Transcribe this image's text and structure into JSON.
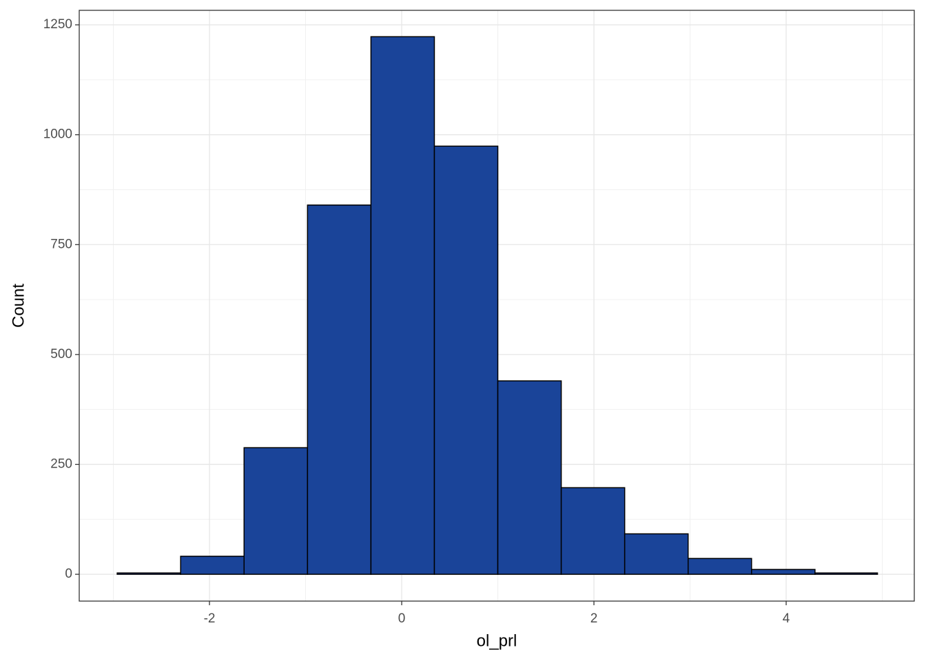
{
  "chart_data": {
    "type": "histogram",
    "x_label": "ol_prl",
    "y_label": "Count",
    "bins": [
      -2.96,
      -2.3,
      -1.64,
      -0.98,
      -0.32,
      0.34,
      1.0,
      1.66,
      2.32,
      2.98,
      3.64,
      4.3,
      4.95
    ],
    "values": [
      3,
      41,
      288,
      840,
      1223,
      974,
      440,
      197,
      92,
      36,
      11,
      3
    ],
    "color": "#1a4499",
    "edge_color": "#000000",
    "xlim": [
      -3.355,
      5.333
    ],
    "xticks": [
      -2,
      0,
      2,
      4
    ],
    "ylim": [
      -61,
      1283
    ],
    "yticks": [
      0,
      250,
      500,
      750,
      1000,
      1250
    ],
    "grid": true
  }
}
